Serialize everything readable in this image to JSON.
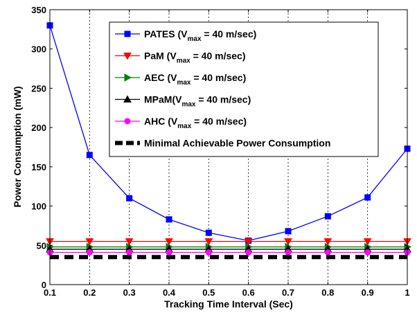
{
  "chart_data": {
    "type": "line",
    "xlabel": "Tracking Time Interval (Sec)",
    "ylabel": "Power Consumption (mW)",
    "xlim": [
      0.1,
      1
    ],
    "ylim": [
      0,
      350
    ],
    "xticks": [
      "0.1",
      "0.2",
      "0.3",
      "0.4",
      "0.5",
      "0.6",
      "0.7",
      "0.8",
      "0.9",
      "1"
    ],
    "yticks": [
      "0",
      "50",
      "100",
      "150",
      "200",
      "250",
      "300",
      "350"
    ],
    "grid": "vertical-dotted",
    "legend_position": "top-right",
    "x": [
      0.1,
      0.2,
      0.3,
      0.4,
      0.5,
      0.6,
      0.7,
      0.8,
      0.9,
      1.0
    ],
    "series": [
      {
        "name": "PATES",
        "legend_label": {
          "prefix": "PATES (V",
          "sub": "max",
          "suffix": " = 40 m/sec)"
        },
        "color": "#0000ff",
        "marker": "square",
        "dashed": false,
        "values": [
          330,
          165,
          110,
          83,
          66,
          56,
          68,
          87,
          111,
          173
        ]
      },
      {
        "name": "PaM",
        "legend_label": {
          "prefix": "PaM (V",
          "sub": "max",
          "suffix": " = 40 m/sec)"
        },
        "color": "#ff0000",
        "marker": "triangle-down",
        "dashed": false,
        "values": [
          55,
          55,
          55,
          55,
          55,
          55,
          55,
          55,
          55,
          55
        ]
      },
      {
        "name": "AEC",
        "legend_label": {
          "prefix": "AEC (V",
          "sub": "max",
          "suffix": " = 40 m/sec)"
        },
        "color": "#008000",
        "marker": "triangle-right",
        "dashed": false,
        "values": [
          48,
          48,
          48,
          48,
          48,
          48,
          48,
          48,
          48,
          48
        ]
      },
      {
        "name": "MPaM",
        "legend_label": {
          "prefix": "MPaM(V",
          "sub": "max",
          "suffix": " = 40 m/sec)"
        },
        "color": "#000000",
        "marker": "triangle-up",
        "dashed": false,
        "values": [
          45,
          45,
          45,
          45,
          45,
          45,
          45,
          45,
          45,
          45
        ]
      },
      {
        "name": "AHC",
        "legend_label": {
          "prefix": "AHC (V",
          "sub": "max",
          "suffix": " = 40 m/sec)"
        },
        "color": "#ff00ff",
        "marker": "circle",
        "dashed": false,
        "values": [
          41,
          41,
          41,
          41,
          41,
          41,
          41,
          41,
          41,
          41
        ]
      },
      {
        "name": "Minimal Achievable Power Consumption",
        "legend_label": {
          "prefix": "Minimal Achievable Power Consumption",
          "sub": "",
          "suffix": ""
        },
        "color": "#000000",
        "marker": "none",
        "dashed": true,
        "values": [
          35,
          35,
          35,
          35,
          35,
          35,
          35,
          35,
          35,
          35
        ]
      }
    ]
  }
}
